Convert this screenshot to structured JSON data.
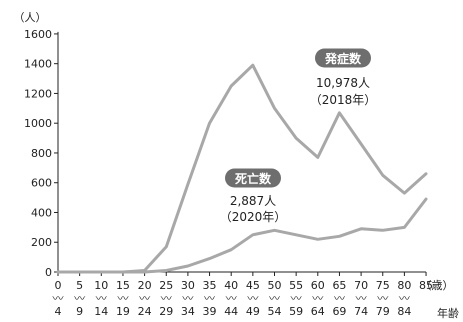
{
  "chart_data": {
    "type": "line",
    "ylabel": "（人）",
    "xlabel": "年齢",
    "x_unit": "（歳）",
    "ylim": [
      0,
      1600
    ],
    "yticks": [
      0,
      200,
      400,
      600,
      800,
      1000,
      1200,
      1400,
      1600
    ],
    "categories": [
      {
        "top": "0",
        "bottom": "4"
      },
      {
        "top": "5",
        "bottom": "9"
      },
      {
        "top": "10",
        "bottom": "14"
      },
      {
        "top": "15",
        "bottom": "19"
      },
      {
        "top": "20",
        "bottom": "24"
      },
      {
        "top": "25",
        "bottom": "29"
      },
      {
        "top": "30",
        "bottom": "34"
      },
      {
        "top": "35",
        "bottom": "39"
      },
      {
        "top": "40",
        "bottom": "44"
      },
      {
        "top": "45",
        "bottom": "49"
      },
      {
        "top": "50",
        "bottom": "54"
      },
      {
        "top": "55",
        "bottom": "59"
      },
      {
        "top": "60",
        "bottom": "64"
      },
      {
        "top": "65",
        "bottom": "69"
      },
      {
        "top": "70",
        "bottom": "74"
      },
      {
        "top": "75",
        "bottom": "79"
      },
      {
        "top": "80",
        "bottom": "84"
      },
      {
        "top": "85",
        "bottom": ""
      }
    ],
    "series": [
      {
        "name": "発症数",
        "values": [
          0,
          0,
          0,
          0,
          10,
          170,
          590,
          1000,
          1250,
          1390,
          1100,
          900,
          770,
          1070,
          860,
          650,
          530,
          660
        ]
      },
      {
        "name": "死亡数",
        "values": [
          0,
          0,
          0,
          0,
          0,
          10,
          40,
          90,
          150,
          250,
          280,
          250,
          220,
          240,
          290,
          280,
          300,
          490
        ]
      }
    ],
    "annotations": [
      {
        "series": "発症数",
        "label": "発症数",
        "value_text": "10,978人",
        "year_text": "（2018年）"
      },
      {
        "series": "死亡数",
        "label": "死亡数",
        "value_text": "2,887人",
        "year_text": "（2020年）"
      }
    ],
    "line_color": "#a8a8a8",
    "pill_color": "#6e6e6e",
    "axis_color": "#222222",
    "grid": false,
    "legend": "none"
  }
}
